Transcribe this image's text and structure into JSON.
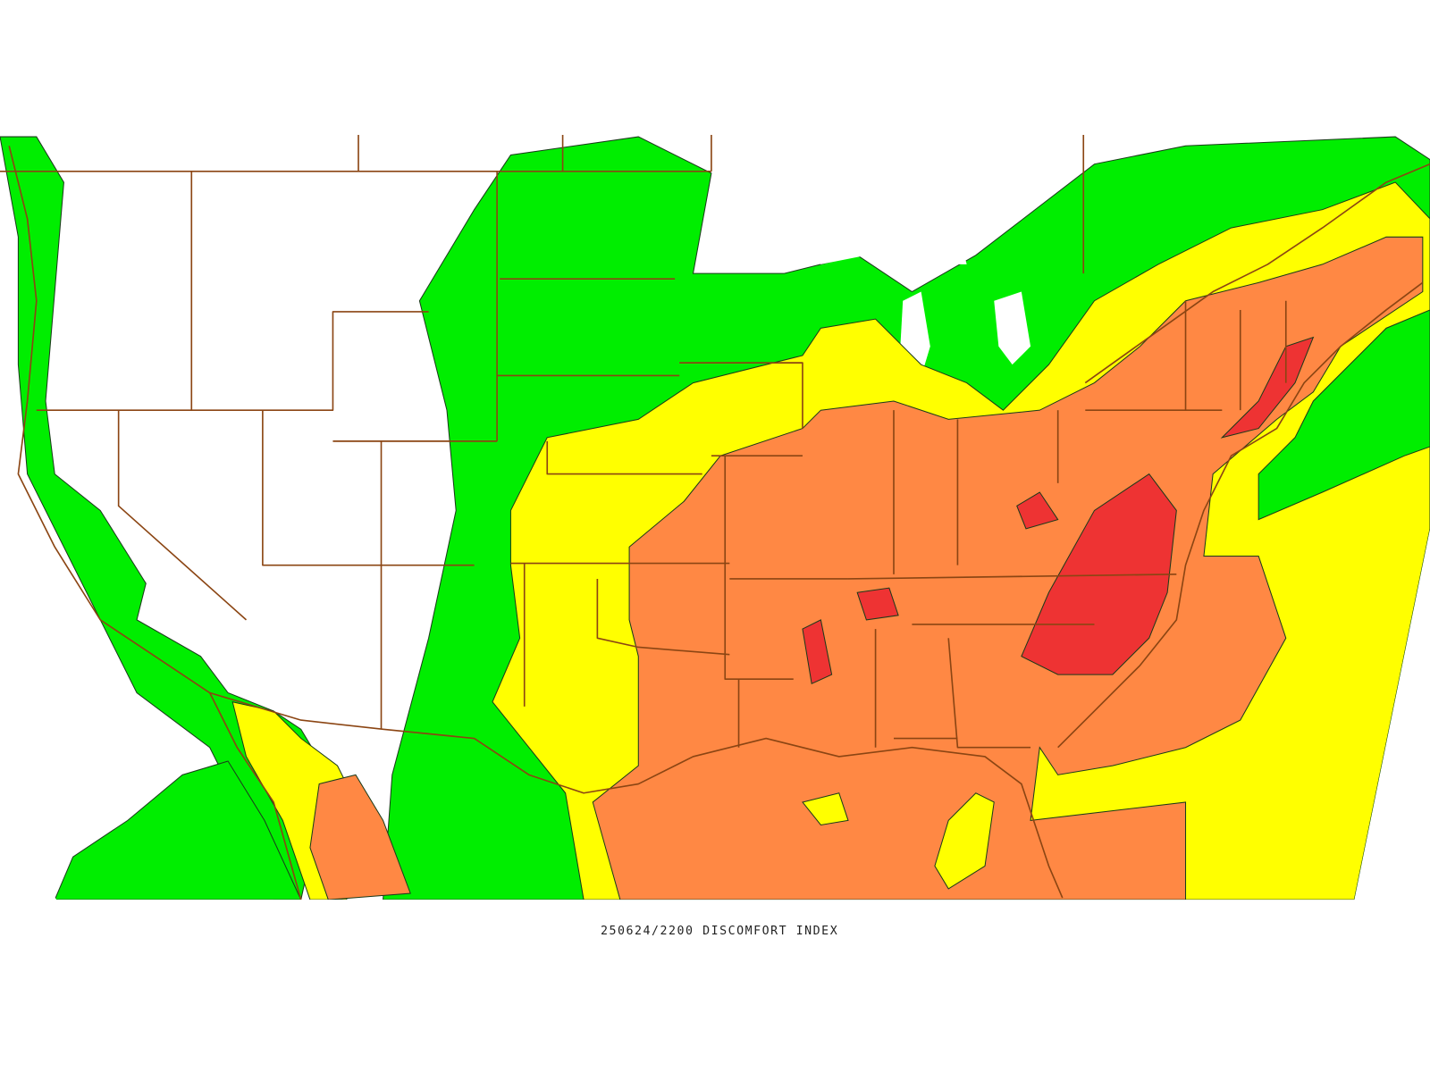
{
  "caption": "250624/2200 DISCOMFORT INDEX"
}
